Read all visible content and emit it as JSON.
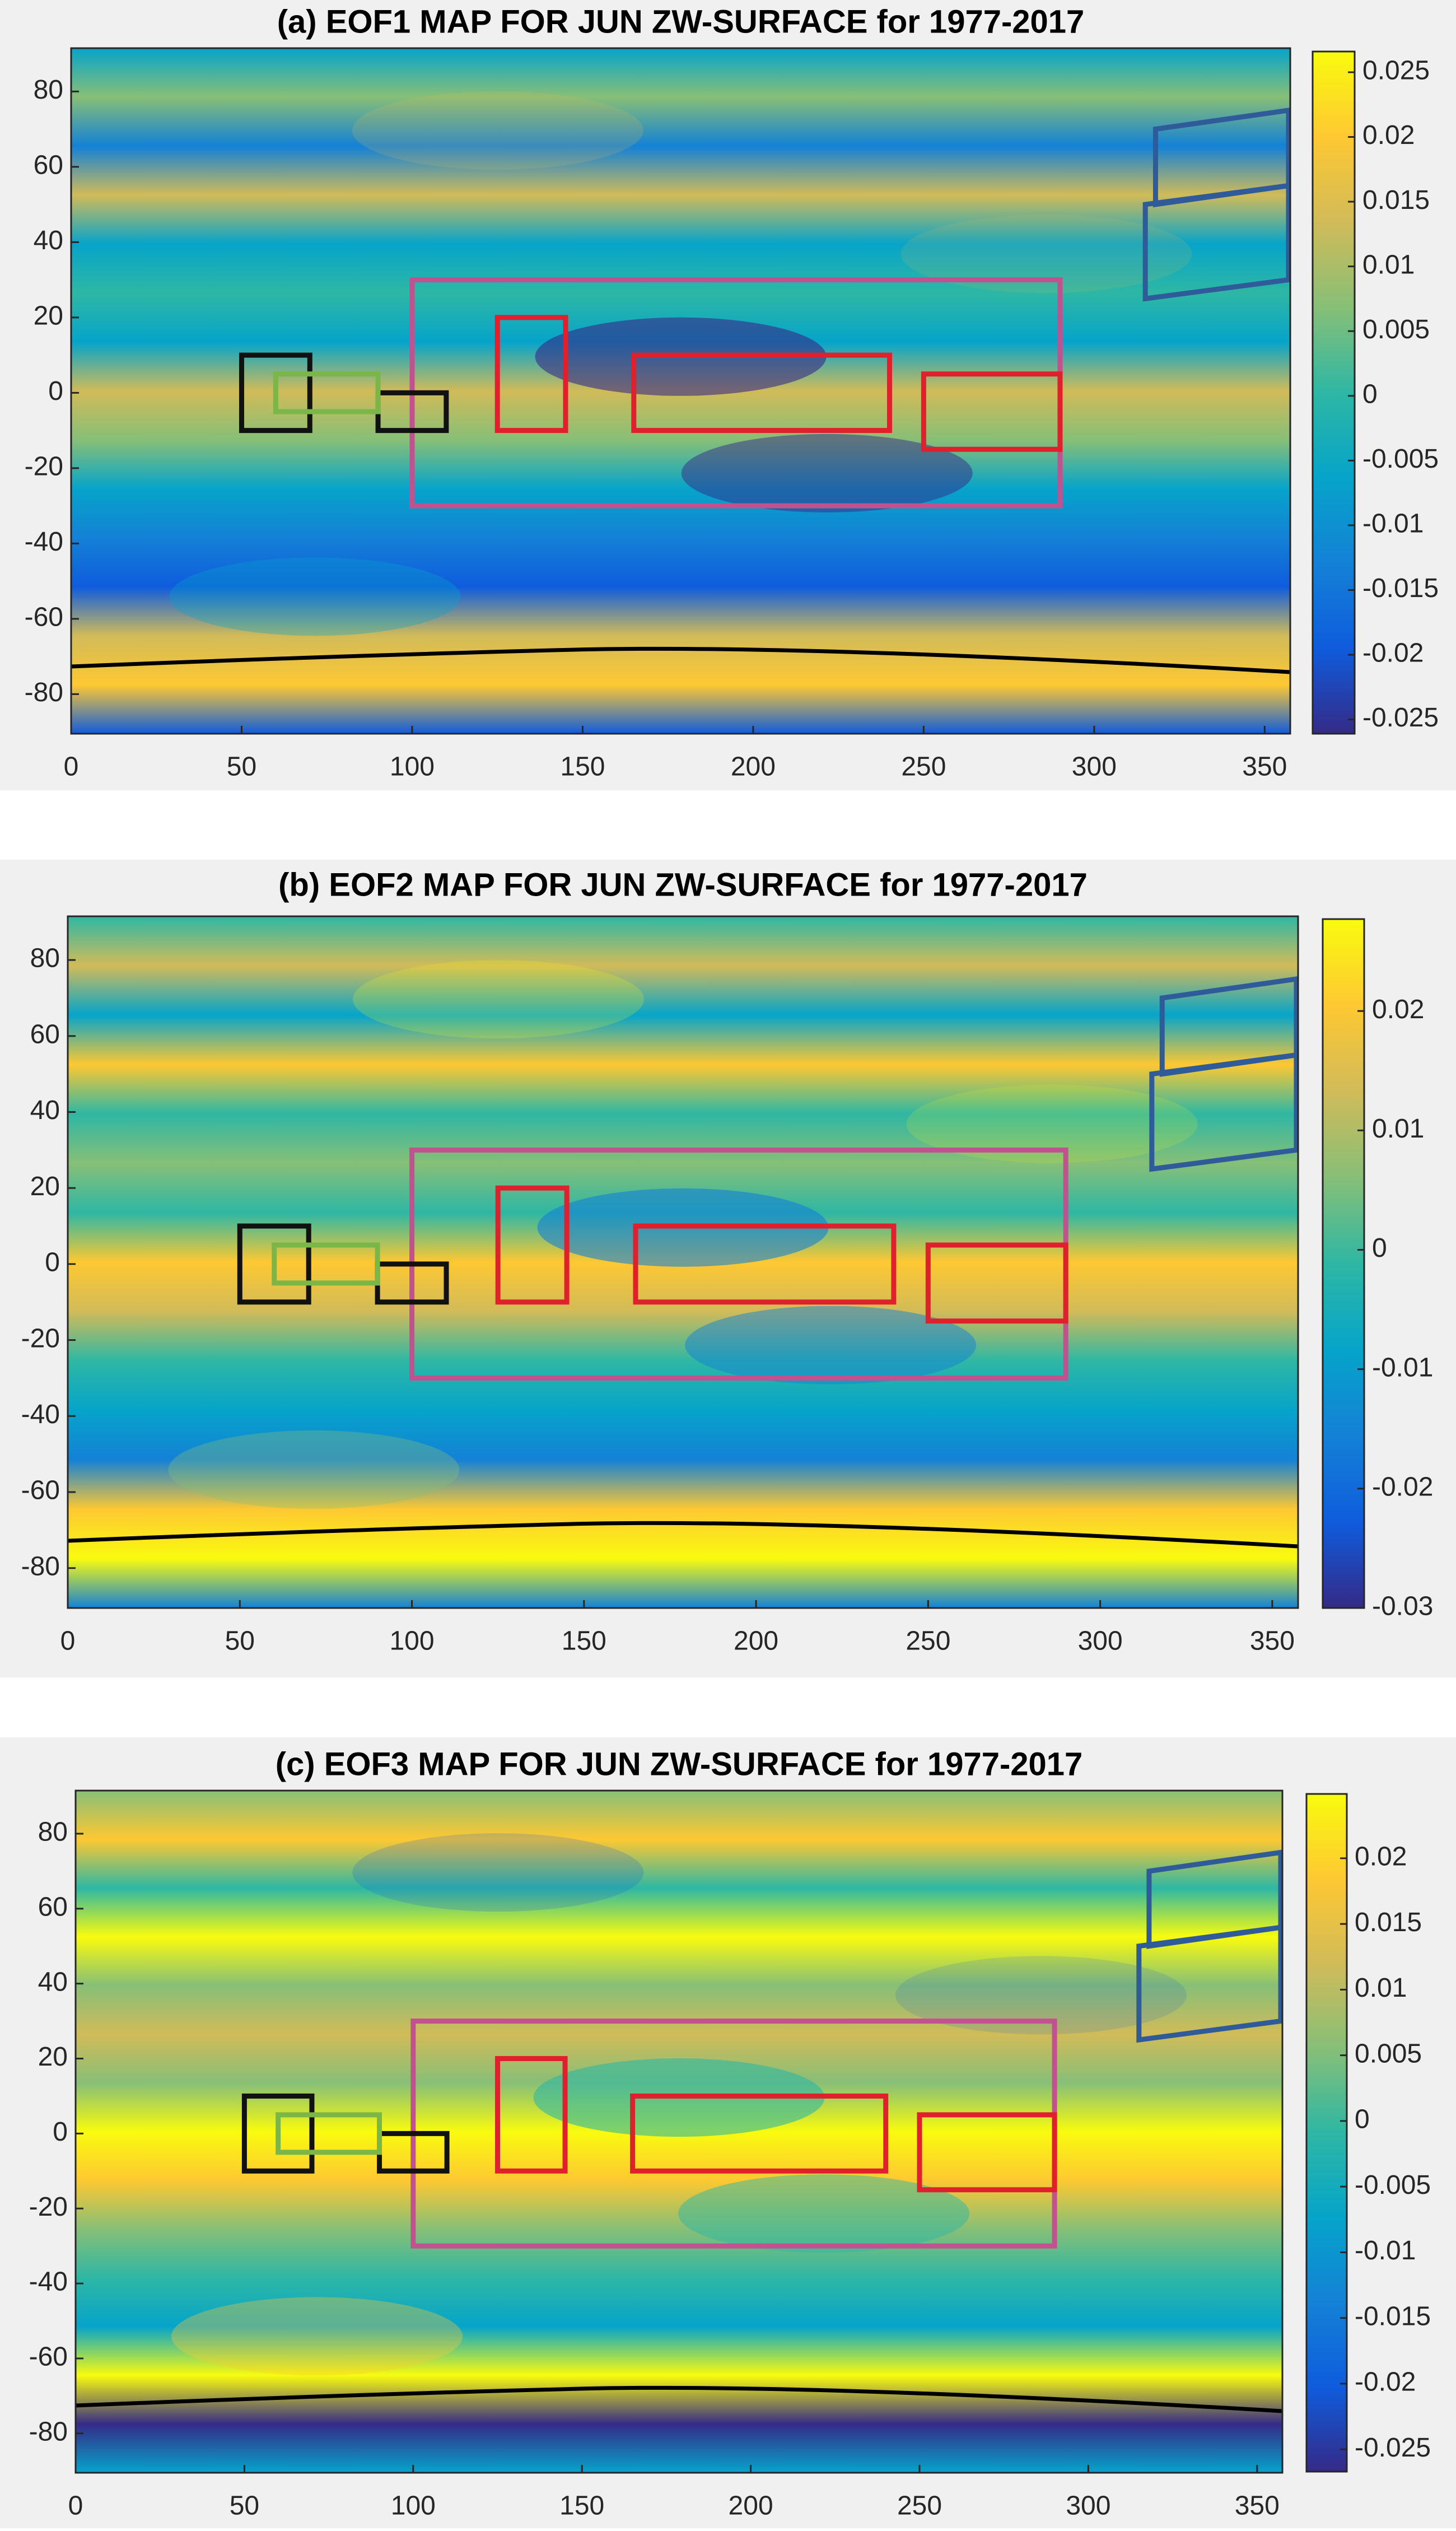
{
  "chart_data": [
    {
      "type": "heatmap",
      "title": "(a) EOF1 MAP FOR JUN ZW-SURFACE for 1977-2017",
      "colormap": "parula",
      "xlim": [
        0,
        357.5
      ],
      "ylim": [
        -90.5,
        91.5
      ],
      "xticks": [
        0,
        50,
        100,
        150,
        200,
        250,
        300,
        350
      ],
      "yticks": [
        -80,
        -60,
        -40,
        -20,
        0,
        20,
        40,
        60,
        80
      ],
      "colorbar": {
        "lim": [
          -0.0261,
          0.0266
        ],
        "ticks": [
          -0.025,
          -0.02,
          -0.015,
          -0.01,
          -0.005,
          0,
          0.005,
          0.01,
          0.015,
          0.02,
          0.025
        ]
      },
      "regions": [
        {
          "color": "#c2528f",
          "lon": [
            100,
            290
          ],
          "lat": [
            -30,
            30
          ]
        },
        {
          "color": "#e0202c",
          "lon": [
            125,
            145
          ],
          "lat": [
            -10,
            20
          ]
        },
        {
          "color": "#e0202c",
          "lon": [
            165,
            240
          ],
          "lat": [
            -10,
            10
          ]
        },
        {
          "color": "#e0202c",
          "lon": [
            250,
            290
          ],
          "lat": [
            -15,
            5
          ]
        },
        {
          "color": "#111111",
          "lon": [
            50,
            70
          ],
          "lat": [
            -10,
            10
          ]
        },
        {
          "color": "#111111",
          "lon": [
            90,
            110
          ],
          "lat": [
            -10,
            0
          ]
        },
        {
          "color": "#7ab648",
          "lon": [
            60,
            90
          ],
          "lat": [
            -5,
            5
          ]
        }
      ]
    },
    {
      "type": "heatmap",
      "title": "(b) EOF2 MAP FOR JUN ZW-SURFACE for 1977-2017",
      "colormap": "parula",
      "xlim": [
        0,
        357.5
      ],
      "ylim": [
        -90.5,
        91.5
      ],
      "xticks": [
        0,
        50,
        100,
        150,
        200,
        250,
        300,
        350
      ],
      "yticks": [
        -80,
        -60,
        -40,
        -20,
        0,
        20,
        40,
        60,
        80
      ],
      "colorbar": {
        "lim": [
          -0.03,
          0.0277
        ],
        "ticks": [
          -0.03,
          -0.02,
          -0.01,
          0,
          0.01,
          0.02
        ]
      },
      "regions": [
        {
          "color": "#c2528f",
          "lon": [
            100,
            290
          ],
          "lat": [
            -30,
            30
          ]
        },
        {
          "color": "#e0202c",
          "lon": [
            125,
            145
          ],
          "lat": [
            -10,
            20
          ]
        },
        {
          "color": "#e0202c",
          "lon": [
            165,
            240
          ],
          "lat": [
            -10,
            10
          ]
        },
        {
          "color": "#e0202c",
          "lon": [
            250,
            290
          ],
          "lat": [
            -15,
            5
          ]
        },
        {
          "color": "#111111",
          "lon": [
            50,
            70
          ],
          "lat": [
            -10,
            10
          ]
        },
        {
          "color": "#111111",
          "lon": [
            90,
            110
          ],
          "lat": [
            -10,
            0
          ]
        },
        {
          "color": "#7ab648",
          "lon": [
            60,
            90
          ],
          "lat": [
            -5,
            5
          ]
        }
      ]
    },
    {
      "type": "heatmap",
      "title": "(c) EOF3 MAP FOR JUN ZW-SURFACE for 1977-2017",
      "colormap": "parula",
      "xlim": [
        0,
        357.5
      ],
      "ylim": [
        -90.5,
        91.5
      ],
      "xticks": [
        0,
        50,
        100,
        150,
        200,
        250,
        300,
        350
      ],
      "yticks": [
        -80,
        -60,
        -40,
        -20,
        0,
        20,
        40,
        60,
        80
      ],
      "colorbar": {
        "lim": [
          -0.0267,
          0.0249
        ],
        "ticks": [
          -0.025,
          -0.02,
          -0.015,
          -0.01,
          -0.005,
          0,
          0.005,
          0.01,
          0.015,
          0.02
        ]
      },
      "regions": [
        {
          "color": "#c2528f",
          "lon": [
            100,
            290
          ],
          "lat": [
            -30,
            30
          ]
        },
        {
          "color": "#e0202c",
          "lon": [
            125,
            145
          ],
          "lat": [
            -10,
            20
          ]
        },
        {
          "color": "#e0202c",
          "lon": [
            165,
            240
          ],
          "lat": [
            -10,
            10
          ]
        },
        {
          "color": "#e0202c",
          "lon": [
            250,
            290
          ],
          "lat": [
            -15,
            5
          ]
        },
        {
          "color": "#111111",
          "lon": [
            50,
            70
          ],
          "lat": [
            -10,
            10
          ]
        },
        {
          "color": "#111111",
          "lon": [
            90,
            110
          ],
          "lat": [
            -10,
            0
          ]
        },
        {
          "color": "#7ab648",
          "lon": [
            60,
            90
          ],
          "lat": [
            -5,
            5
          ]
        }
      ]
    }
  ]
}
